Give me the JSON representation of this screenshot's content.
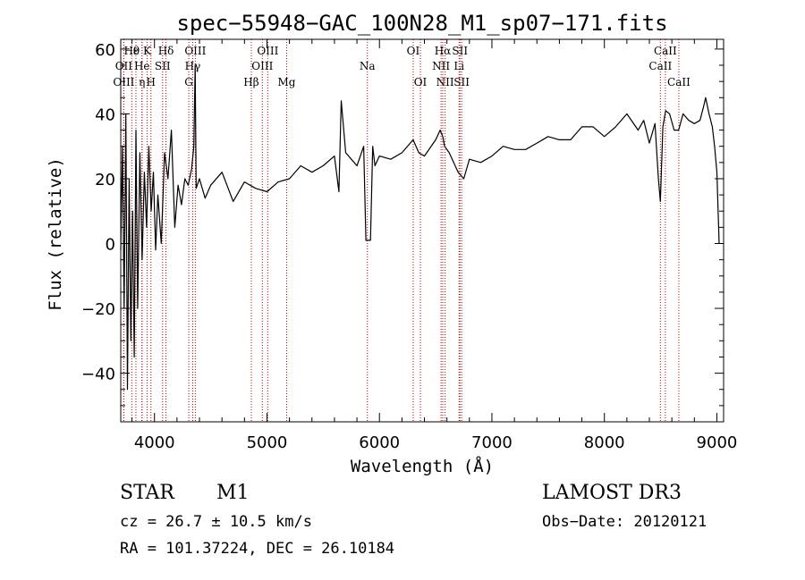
{
  "chart_data": {
    "type": "line",
    "title": "spec−55948−GAC_100N28_M1_sp07−171.fits",
    "xlabel": "Wavelength (Å)",
    "ylabel": "Flux (relative)",
    "xlim": [
      3700,
      9060
    ],
    "ylim": [
      -55,
      63
    ],
    "x_ticks": [
      4000,
      5000,
      6000,
      7000,
      8000,
      9000
    ],
    "y_ticks": [
      -40,
      -20,
      0,
      20,
      40,
      60
    ],
    "x_tick_labels": [
      "4000",
      "5000",
      "6000",
      "7000",
      "8000",
      "9000"
    ],
    "y_tick_labels": [
      "−40",
      "−20",
      "0",
      "20",
      "40",
      "60"
    ],
    "series": [
      {
        "name": "spectrum",
        "x": [
          3700,
          3715,
          3730,
          3745,
          3760,
          3775,
          3790,
          3805,
          3820,
          3835,
          3850,
          3870,
          3890,
          3910,
          3930,
          3950,
          3970,
          3990,
          4010,
          4030,
          4060,
          4090,
          4120,
          4150,
          4180,
          4210,
          4240,
          4270,
          4300,
          4330,
          4350,
          4362,
          4370,
          4400,
          4450,
          4500,
          4600,
          4700,
          4800,
          4900,
          5000,
          5100,
          5200,
          5300,
          5400,
          5500,
          5600,
          5640,
          5660,
          5700,
          5750,
          5800,
          5860,
          5880,
          5900,
          5920,
          5940,
          5960,
          6000,
          6100,
          6200,
          6300,
          6350,
          6400,
          6500,
          6540,
          6563,
          6580,
          6620,
          6700,
          6750,
          6800,
          6900,
          7000,
          7100,
          7200,
          7300,
          7400,
          7500,
          7600,
          7700,
          7800,
          7900,
          8000,
          8100,
          8200,
          8300,
          8350,
          8400,
          8450,
          8480,
          8498,
          8520,
          8545,
          8580,
          8620,
          8660,
          8700,
          8750,
          8800,
          8850,
          8880,
          8900,
          8930,
          8960,
          8980,
          9000,
          9020
        ],
        "y": [
          -2,
          30,
          -20,
          40,
          -45,
          20,
          -30,
          10,
          -35,
          35,
          -20,
          28,
          -5,
          22,
          5,
          30,
          10,
          22,
          -2,
          15,
          0,
          28,
          20,
          35,
          5,
          18,
          12,
          20,
          18,
          23,
          30,
          55,
          17,
          20,
          14,
          18,
          22,
          13,
          19,
          17,
          16,
          19,
          20,
          24,
          22,
          24,
          27,
          16,
          44,
          28,
          26,
          24,
          30,
          1,
          1,
          1,
          30,
          24,
          27,
          26,
          28,
          32,
          28,
          27,
          32,
          35,
          33,
          30,
          28,
          22,
          20,
          26,
          25,
          27,
          30,
          29,
          29,
          31,
          33,
          32,
          32,
          36,
          36,
          33,
          36,
          40,
          35,
          38,
          31,
          37,
          20,
          13,
          36,
          41,
          40,
          35,
          35,
          40,
          38,
          37,
          38,
          42,
          45,
          40,
          36,
          30,
          22,
          0
        ]
      }
    ],
    "spectral_lines": [
      {
        "label": "Hθ",
        "wavelength": 3798,
        "row": 1
      },
      {
        "label": "OII",
        "wavelength": 3727,
        "row": 2
      },
      {
        "label": "OIII",
        "wavelength": 3727,
        "row": 3
      },
      {
        "label": "ε",
        "wavelength": 3835,
        "row": 1
      },
      {
        "label": "K",
        "wavelength": 3934,
        "row": 1
      },
      {
        "label": "He",
        "wavelength": 3889,
        "row": 2
      },
      {
        "label": "η",
        "wavelength": 3889,
        "row": 3
      },
      {
        "label": "H",
        "wavelength": 3968,
        "row": 3
      },
      {
        "label": "SII",
        "wavelength": 4072,
        "row": 2
      },
      {
        "label": "Hδ",
        "wavelength": 4102,
        "row": 1
      },
      {
        "label": "OIII",
        "wavelength": 4363,
        "row": 1
      },
      {
        "label": "Hγ",
        "wavelength": 4340,
        "row": 2
      },
      {
        "label": "G",
        "wavelength": 4305,
        "row": 3
      },
      {
        "label": "OIII",
        "wavelength": 5007,
        "row": 1
      },
      {
        "label": "OIII",
        "wavelength": 4959,
        "row": 2
      },
      {
        "label": "Hβ",
        "wavelength": 4861,
        "row": 3
      },
      {
        "label": "Mg",
        "wavelength": 5175,
        "row": 3
      },
      {
        "label": "Na",
        "wavelength": 5893,
        "row": 2
      },
      {
        "label": "OI",
        "wavelength": 6300,
        "row": 1
      },
      {
        "label": "OI",
        "wavelength": 6364,
        "row": 3
      },
      {
        "label": "Hα",
        "wavelength": 6563,
        "row": 1
      },
      {
        "label": "SII",
        "wavelength": 6716,
        "row": 1
      },
      {
        "label": "NII",
        "wavelength": 6548,
        "row": 2
      },
      {
        "label": "Li",
        "wavelength": 6708,
        "row": 2
      },
      {
        "label": "NII",
        "wavelength": 6584,
        "row": 3
      },
      {
        "label": "SII",
        "wavelength": 6731,
        "row": 3
      },
      {
        "label": "CaII",
        "wavelength": 8542,
        "row": 1
      },
      {
        "label": "CaII",
        "wavelength": 8498,
        "row": 2
      },
      {
        "label": "CaII",
        "wavelength": 8662,
        "row": 3
      }
    ],
    "line_color": "#000000",
    "marker_line_color": "#c00000"
  },
  "info": {
    "object_class": "STAR",
    "subclass": "M1",
    "survey": "LAMOST DR3",
    "redshift": "cz = 26.7 ± 10.5 km/s",
    "obs_date": "Obs−Date: 20120121",
    "coordinates": "RA = 101.37224, DEC =  26.10184"
  }
}
